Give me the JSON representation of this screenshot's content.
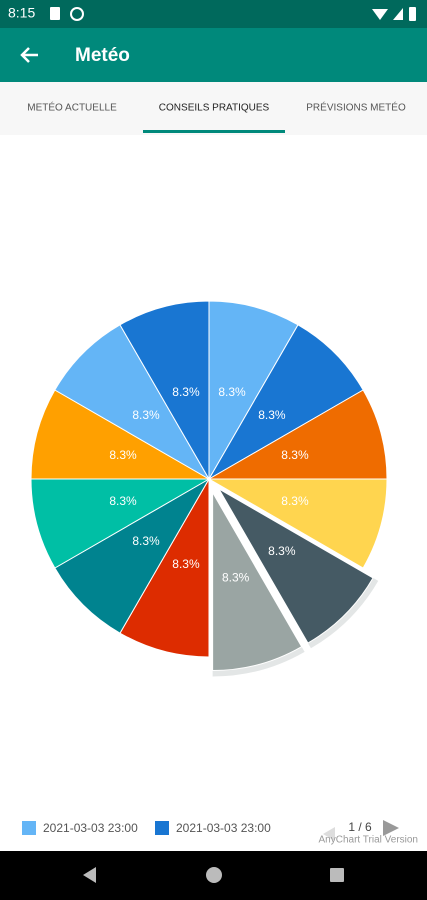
{
  "status_bar": {
    "time": "8:15"
  },
  "app_bar": {
    "title": "Metéo"
  },
  "tabs": [
    "METÉO ACTUELLE",
    "CONSEILS PRATIQUES",
    "PRÉVISIONS METÉO"
  ],
  "chart_data": {
    "type": "pie",
    "categories": [
      "2021-03-03 23:00",
      "2021-03-03 23:00",
      null,
      null,
      null,
      null,
      null,
      null,
      null,
      null,
      null,
      null
    ],
    "values": [
      8.3,
      8.3,
      8.3,
      8.3,
      8.3,
      8.3,
      8.3,
      8.3,
      8.3,
      8.3,
      8.3,
      8.3
    ],
    "value_labels": [
      "8.3%",
      "8.3%",
      "8.3%",
      "8.3%",
      "8.3%",
      "8.3%",
      "8.3%",
      "8.3%",
      "8.3%",
      "8.3%",
      "8.3%",
      "8.3%"
    ],
    "colors": [
      "#64b5f6",
      "#1976d2",
      "#ef6c00",
      "#ffd54f",
      "#455a64",
      "#9aa5a3",
      "#dd2c00",
      "#00838f",
      "#00bfa5",
      "#ffa000",
      "#64b5f6",
      "#1976d2"
    ],
    "exploded_slices": [
      4,
      5
    ],
    "legend_page": "1 / 6",
    "watermark": "AnyChart Trial Version"
  }
}
